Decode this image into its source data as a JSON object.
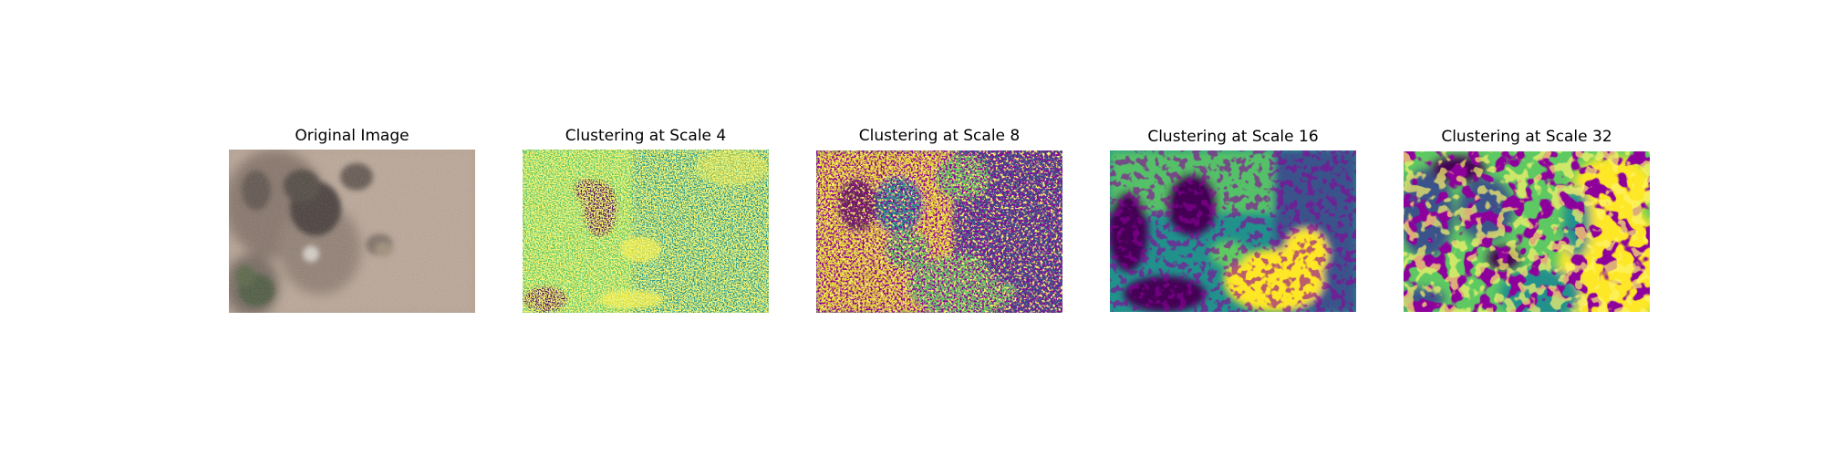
{
  "panels": [
    {
      "title": "Original Image",
      "kind": "photo"
    },
    {
      "title": "Clustering at Scale 4",
      "kind": "cluster-map",
      "scale": 4
    },
    {
      "title": "Clustering at Scale 8",
      "kind": "cluster-map",
      "scale": 8
    },
    {
      "title": "Clustering at Scale 16",
      "kind": "cluster-map",
      "scale": 16
    },
    {
      "title": "Clustering at Scale 32",
      "kind": "cluster-map",
      "scale": 32
    }
  ],
  "colormap": {
    "name": "viridis",
    "cluster_colors": [
      "#440154",
      "#3b528b",
      "#21918c",
      "#5ec962",
      "#fde725"
    ]
  }
}
